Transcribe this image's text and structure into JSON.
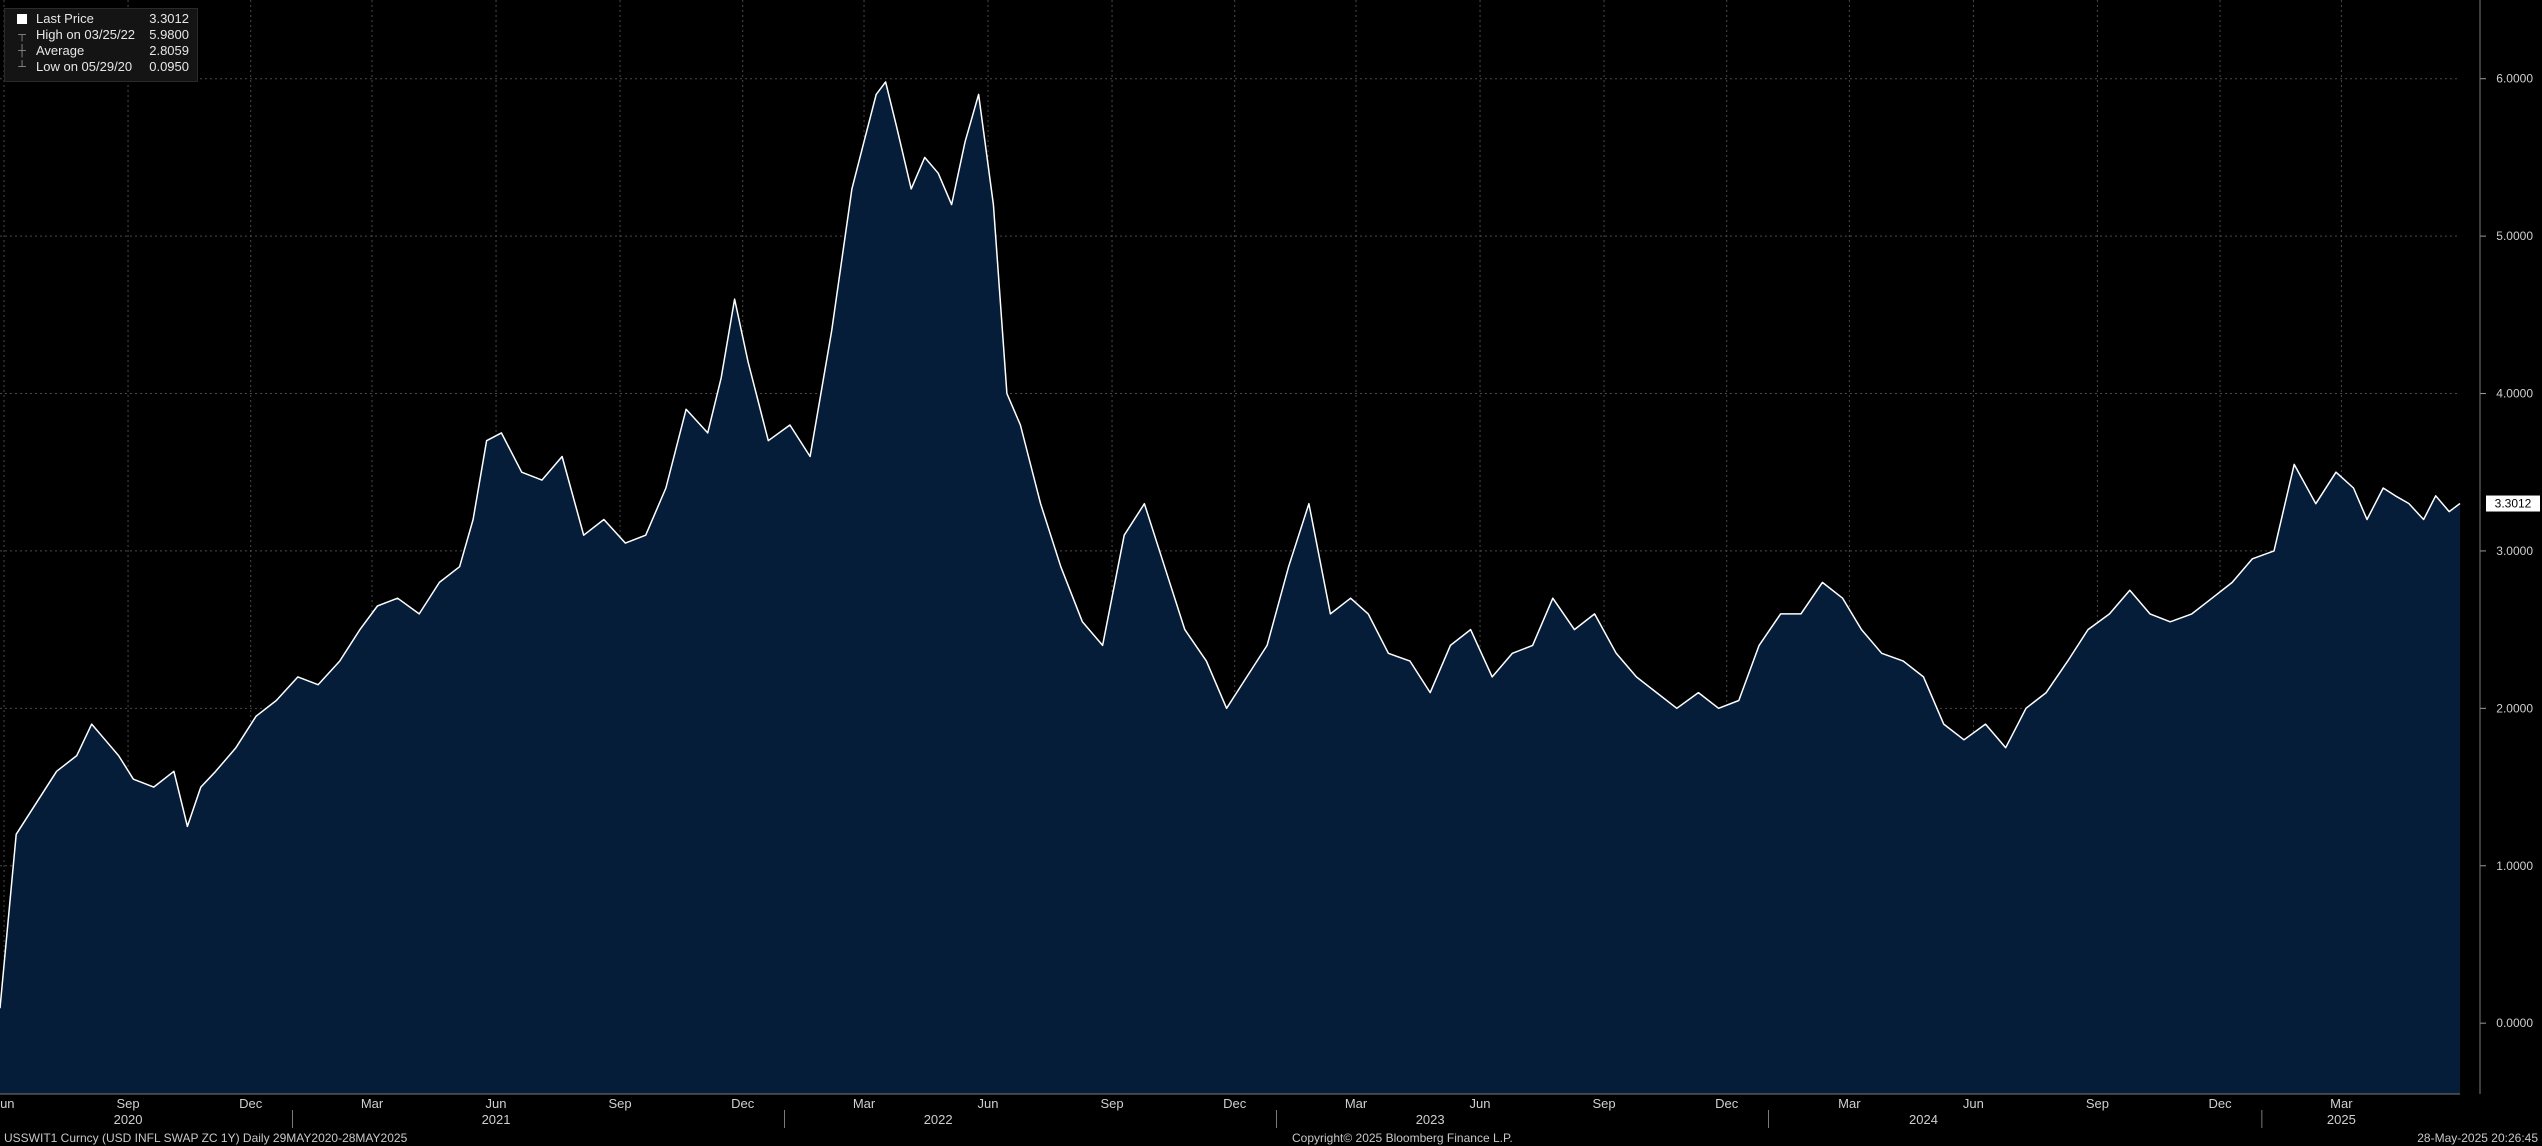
{
  "legend": {
    "items": [
      {
        "label": "Last Price",
        "value": "3.3012",
        "icon": "square-marker-icon"
      },
      {
        "label": "High on 03/25/22",
        "value": "5.9800",
        "icon": "high-marker-icon"
      },
      {
        "label": "Average",
        "value": "2.8059",
        "icon": "average-marker-icon"
      },
      {
        "label": "Low on 05/29/20",
        "value": "0.0950",
        "icon": "low-marker-icon"
      }
    ]
  },
  "footer": {
    "ticker": "USSWIT1 Curncy (USD INFL SWAP ZC 1Y)  Daily 29MAY2020-28MAY2025",
    "copyright": "Copyright© 2025 Bloomberg Finance L.P.",
    "timestamp": "28-May-2025 20:26:45"
  },
  "colors": {
    "background": "#000000",
    "area_fill": "#061d3a",
    "line": "#ffffff",
    "grid": "#4a4a4a"
  },
  "chart_data": {
    "type": "area",
    "title": "",
    "xlabel": "",
    "ylabel": "",
    "x_range": [
      "2020-05-29",
      "2025-05-28"
    ],
    "ylim": [
      -0.45,
      6.5
    ],
    "yticks": [
      "6.0000",
      "5.0000",
      "4.0000",
      "3.0000",
      "2.0000",
      "1.0000",
      "0.0000"
    ],
    "last_price_label": "3.3012",
    "xtick_months": [
      {
        "label": "Jun",
        "date": "2020-06-01"
      },
      {
        "label": "Sep",
        "date": "2020-09-01"
      },
      {
        "label": "Dec",
        "date": "2020-12-01"
      },
      {
        "label": "Mar",
        "date": "2021-03-01"
      },
      {
        "label": "Jun",
        "date": "2021-06-01"
      },
      {
        "label": "Sep",
        "date": "2021-09-01"
      },
      {
        "label": "Dec",
        "date": "2021-12-01"
      },
      {
        "label": "Mar",
        "date": "2022-03-01"
      },
      {
        "label": "Jun",
        "date": "2022-06-01"
      },
      {
        "label": "Sep",
        "date": "2022-09-01"
      },
      {
        "label": "Dec",
        "date": "2022-12-01"
      },
      {
        "label": "Mar",
        "date": "2023-03-01"
      },
      {
        "label": "Jun",
        "date": "2023-06-01"
      },
      {
        "label": "Sep",
        "date": "2023-09-01"
      },
      {
        "label": "Dec",
        "date": "2023-12-01"
      },
      {
        "label": "Mar",
        "date": "2024-03-01"
      },
      {
        "label": "Jun",
        "date": "2024-06-01"
      },
      {
        "label": "Sep",
        "date": "2024-09-01"
      },
      {
        "label": "Dec",
        "date": "2024-12-01"
      },
      {
        "label": "Mar",
        "date": "2025-03-01"
      }
    ],
    "xtick_years": [
      {
        "label": "2020",
        "date": "2020-09-01"
      },
      {
        "label": "2021",
        "date": "2021-06-01"
      },
      {
        "label": "2022",
        "date": "2022-04-25"
      },
      {
        "label": "2023",
        "date": "2023-04-25"
      },
      {
        "label": "2024",
        "date": "2024-04-25"
      },
      {
        "label": "2025",
        "date": "2025-03-01"
      }
    ],
    "year_boundaries": [
      "2021-01-01",
      "2022-01-01",
      "2023-01-01",
      "2024-01-01",
      "2025-01-01"
    ],
    "series": [
      {
        "x": [
          "2020-05-29",
          "2020-06-10",
          "2020-06-25",
          "2020-07-10",
          "2020-07-25",
          "2020-08-05",
          "2020-08-15",
          "2020-08-25",
          "2020-09-05",
          "2020-09-20",
          "2020-10-05",
          "2020-10-15",
          "2020-10-25",
          "2020-11-05",
          "2020-11-20",
          "2020-12-05",
          "2020-12-20",
          "2021-01-05",
          "2021-01-20",
          "2021-02-05",
          "2021-02-20",
          "2021-03-05",
          "2021-03-20",
          "2021-04-05",
          "2021-04-20",
          "2021-05-05",
          "2021-05-15",
          "2021-05-25",
          "2021-06-05",
          "2021-06-20",
          "2021-07-05",
          "2021-07-20",
          "2021-08-05",
          "2021-08-20",
          "2021-09-05",
          "2021-09-20",
          "2021-10-05",
          "2021-10-20",
          "2021-11-05",
          "2021-11-15",
          "2021-11-25",
          "2021-12-05",
          "2021-12-20",
          "2022-01-05",
          "2022-01-20",
          "2022-02-05",
          "2022-02-20",
          "2022-03-01",
          "2022-03-10",
          "2022-03-17",
          "2022-03-25",
          "2022-04-05",
          "2022-04-15",
          "2022-04-25",
          "2022-05-05",
          "2022-05-15",
          "2022-05-25",
          "2022-06-05",
          "2022-06-15",
          "2022-06-25",
          "2022-07-10",
          "2022-07-25",
          "2022-08-10",
          "2022-08-25",
          "2022-09-10",
          "2022-09-25",
          "2022-10-10",
          "2022-10-25",
          "2022-11-10",
          "2022-11-25",
          "2022-12-10",
          "2022-12-25",
          "2023-01-10",
          "2023-01-25",
          "2023-02-10",
          "2023-02-25",
          "2023-03-10",
          "2023-03-25",
          "2023-04-10",
          "2023-04-25",
          "2023-05-10",
          "2023-05-25",
          "2023-06-10",
          "2023-06-25",
          "2023-07-10",
          "2023-07-25",
          "2023-08-10",
          "2023-08-25",
          "2023-09-10",
          "2023-09-25",
          "2023-10-10",
          "2023-10-25",
          "2023-11-10",
          "2023-11-25",
          "2023-12-10",
          "2023-12-25",
          "2024-01-10",
          "2024-01-25",
          "2024-02-10",
          "2024-02-25",
          "2024-03-10",
          "2024-03-25",
          "2024-04-10",
          "2024-04-25",
          "2024-05-10",
          "2024-05-25",
          "2024-06-10",
          "2024-06-25",
          "2024-07-10",
          "2024-07-25",
          "2024-08-10",
          "2024-08-25",
          "2024-09-10",
          "2024-09-25",
          "2024-10-10",
          "2024-10-25",
          "2024-11-10",
          "2024-11-25",
          "2024-12-10",
          "2024-12-25",
          "2025-01-10",
          "2025-01-25",
          "2025-02-10",
          "2025-02-25",
          "2025-03-10",
          "2025-03-20",
          "2025-04-01",
          "2025-04-10",
          "2025-04-20",
          "2025-05-01",
          "2025-05-10",
          "2025-05-20",
          "2025-05-28"
        ],
        "values": [
          0.095,
          1.2,
          1.4,
          1.6,
          1.7,
          1.9,
          1.8,
          1.7,
          1.55,
          1.5,
          1.6,
          1.25,
          1.5,
          1.6,
          1.75,
          1.95,
          2.05,
          2.2,
          2.15,
          2.3,
          2.5,
          2.65,
          2.7,
          2.6,
          2.8,
          2.9,
          3.2,
          3.7,
          3.75,
          3.5,
          3.45,
          3.6,
          3.1,
          3.2,
          3.05,
          3.1,
          3.4,
          3.9,
          3.75,
          4.1,
          4.6,
          4.2,
          3.7,
          3.8,
          3.6,
          4.4,
          5.3,
          5.6,
          5.9,
          5.98,
          5.7,
          5.3,
          5.5,
          5.4,
          5.2,
          5.6,
          5.9,
          5.2,
          4.0,
          3.8,
          3.3,
          2.9,
          2.55,
          2.4,
          3.1,
          3.3,
          2.9,
          2.5,
          2.3,
          2.0,
          2.2,
          2.4,
          2.9,
          3.3,
          2.6,
          2.7,
          2.6,
          2.35,
          2.3,
          2.1,
          2.4,
          2.5,
          2.2,
          2.35,
          2.4,
          2.7,
          2.5,
          2.6,
          2.35,
          2.2,
          2.1,
          2.0,
          2.1,
          2.0,
          2.05,
          2.4,
          2.6,
          2.6,
          2.8,
          2.7,
          2.5,
          2.35,
          2.3,
          2.2,
          1.9,
          1.8,
          1.9,
          1.75,
          2.0,
          2.1,
          2.3,
          2.5,
          2.6,
          2.75,
          2.6,
          2.55,
          2.6,
          2.7,
          2.8,
          2.95,
          3.0,
          3.55,
          3.3,
          3.5,
          3.4,
          3.2,
          3.4,
          3.35,
          3.3012,
          3.2,
          3.35,
          3.25,
          3.3012
        ]
      }
    ]
  }
}
